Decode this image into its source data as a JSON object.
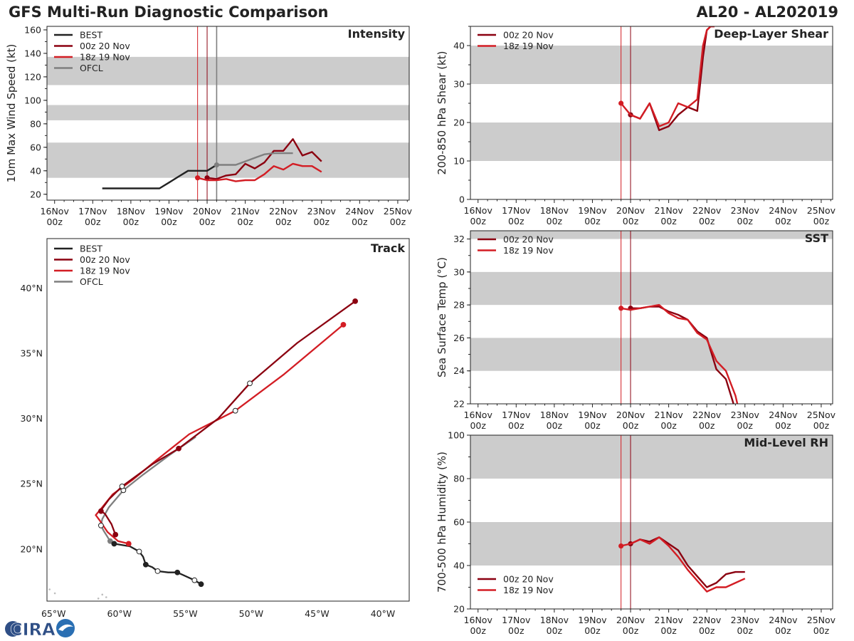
{
  "header": {
    "title_left": "GFS Multi-Run Diagnostic Comparison",
    "title_right": "AL20 - AL202019"
  },
  "logo": {
    "text": "CIRA"
  },
  "colors": {
    "best": "#222222",
    "run_00z": "#8b0010",
    "run_18z": "#d31d24",
    "ofcl": "#7f7f7f",
    "band": "#cccccc",
    "axis": "#222222"
  },
  "chart_data": [
    {
      "id": "intensity",
      "type": "line",
      "title": "Intensity",
      "ylabel": "10m Max Wind Speed (kt)",
      "xlim": [
        -0.2,
        9.3
      ],
      "ylim": [
        15,
        163
      ],
      "yticks": [
        20,
        40,
        60,
        80,
        100,
        120,
        140,
        160
      ],
      "xticks": [
        0,
        1,
        2,
        3,
        4,
        5,
        6,
        7,
        8,
        9
      ],
      "xtick_labels": [
        [
          "16Nov",
          "00z"
        ],
        [
          "17Nov",
          "00z"
        ],
        [
          "18Nov",
          "00z"
        ],
        [
          "19Nov",
          "00z"
        ],
        [
          "20Nov",
          "00z"
        ],
        [
          "21Nov",
          "00z"
        ],
        [
          "22Nov",
          "00z"
        ],
        [
          "23Nov",
          "00z"
        ],
        [
          "24Nov",
          "00z"
        ],
        [
          "25Nov",
          "00z"
        ]
      ],
      "bands": [
        [
          34,
          64
        ],
        [
          83,
          96
        ],
        [
          113,
          137
        ]
      ],
      "vlines": [
        {
          "x": 3.75,
          "series": "18z 19 Nov"
        },
        {
          "x": 4.0,
          "series": "00z 20 Nov"
        },
        {
          "x": 4.25,
          "series": "OFCL"
        }
      ],
      "legend": [
        {
          "label": "BEST",
          "series": "best"
        },
        {
          "label": "00z 20 Nov",
          "series": "run_00z"
        },
        {
          "label": "18z 19 Nov",
          "series": "run_18z"
        },
        {
          "label": "OFCL",
          "series": "ofcl"
        }
      ],
      "series": [
        {
          "name": "BEST",
          "key": "best",
          "x": [
            1.25,
            1.5,
            1.75,
            2.0,
            2.25,
            2.5,
            2.75,
            3.0,
            3.25,
            3.5,
            3.75,
            4.0,
            4.25
          ],
          "y": [
            25,
            25,
            25,
            25,
            25,
            25,
            25,
            30,
            35,
            40,
            40,
            40,
            45
          ]
        },
        {
          "name": "00z 20 Nov",
          "key": "run_00z",
          "x": [
            4.0,
            4.25,
            4.5,
            4.75,
            5.0,
            5.25,
            5.5,
            5.75,
            6.0,
            6.25,
            6.5,
            6.75,
            7.0
          ],
          "y": [
            34,
            33,
            36,
            37,
            46,
            42,
            47,
            57,
            57,
            67,
            53,
            56,
            48
          ],
          "start_marker": true
        },
        {
          "name": "18z 19 Nov",
          "key": "run_18z",
          "x": [
            3.75,
            4.0,
            4.25,
            4.5,
            4.75,
            5.0,
            5.25,
            5.5,
            5.75,
            6.0,
            6.25,
            6.5,
            6.75,
            7.0
          ],
          "y": [
            34,
            32,
            32,
            33,
            31,
            32,
            32,
            37,
            44,
            41,
            46,
            44,
            44,
            39
          ],
          "start_marker": true
        },
        {
          "name": "OFCL",
          "key": "ofcl",
          "x": [
            4.25,
            4.5,
            4.75,
            5.0,
            5.25,
            5.5,
            5.75,
            6.0,
            6.25
          ],
          "y": [
            45,
            45,
            45,
            48,
            51,
            54,
            55,
            55,
            55
          ],
          "start_marker": true
        }
      ]
    },
    {
      "id": "shear",
      "type": "line",
      "title": "Deep-Layer Shear",
      "ylabel": "200-850 hPa Shear (kt)",
      "xlim": [
        -0.2,
        9.3
      ],
      "ylim": [
        0,
        45
      ],
      "yticks": [
        0,
        10,
        20,
        30,
        40
      ],
      "xticks": [
        0,
        1,
        2,
        3,
        4,
        5,
        6,
        7,
        8,
        9
      ],
      "xtick_labels": [
        [
          "16Nov",
          "00z"
        ],
        [
          "17Nov",
          "00z"
        ],
        [
          "18Nov",
          "00z"
        ],
        [
          "19Nov",
          "00z"
        ],
        [
          "20Nov",
          "00z"
        ],
        [
          "21Nov",
          "00z"
        ],
        [
          "22Nov",
          "00z"
        ],
        [
          "23Nov",
          "00z"
        ],
        [
          "24Nov",
          "00z"
        ],
        [
          "25Nov",
          "00z"
        ]
      ],
      "bands": [
        [
          10,
          20
        ],
        [
          30,
          40
        ]
      ],
      "vlines": [
        {
          "x": 3.75,
          "series": "18z 19 Nov"
        },
        {
          "x": 4.0,
          "series": "00z 20 Nov"
        }
      ],
      "legend": [
        {
          "label": "00z 20 Nov",
          "series": "run_00z"
        },
        {
          "label": "18z 19 Nov",
          "series": "run_18z"
        }
      ],
      "series": [
        {
          "name": "00z 20 Nov",
          "key": "run_00z",
          "x": [
            4.0,
            4.25,
            4.5,
            4.75,
            5.0,
            5.25,
            5.5,
            5.75,
            5.9,
            6.0,
            6.1,
            6.2
          ],
          "y": [
            22,
            21,
            25,
            18,
            19,
            22,
            24,
            23,
            37,
            44,
            45,
            45
          ],
          "start_marker": true
        },
        {
          "name": "18z 19 Nov",
          "key": "run_18z",
          "x": [
            3.75,
            4.0,
            4.25,
            4.5,
            4.75,
            5.0,
            5.25,
            5.5,
            5.75,
            5.9,
            6.0,
            6.1,
            6.2
          ],
          "y": [
            25,
            22,
            21,
            25,
            19,
            20,
            25,
            24,
            26,
            40,
            44,
            45,
            45
          ],
          "start_marker": true
        }
      ]
    },
    {
      "id": "sst",
      "type": "line",
      "title": "SST",
      "ylabel": "Sea Surface Temp (°C)",
      "xlim": [
        -0.2,
        9.3
      ],
      "ylim": [
        22,
        32.5
      ],
      "yticks": [
        22,
        24,
        26,
        28,
        30,
        32
      ],
      "xticks": [
        0,
        1,
        2,
        3,
        4,
        5,
        6,
        7,
        8,
        9
      ],
      "xtick_labels": [
        [
          "16Nov",
          "00z"
        ],
        [
          "17Nov",
          "00z"
        ],
        [
          "18Nov",
          "00z"
        ],
        [
          "19Nov",
          "00z"
        ],
        [
          "20Nov",
          "00z"
        ],
        [
          "21Nov",
          "00z"
        ],
        [
          "22Nov",
          "00z"
        ],
        [
          "23Nov",
          "00z"
        ],
        [
          "24Nov",
          "00z"
        ],
        [
          "25Nov",
          "00z"
        ]
      ],
      "bands": [
        [
          24,
          26
        ],
        [
          28,
          30
        ],
        [
          32,
          32.5
        ]
      ],
      "vlines": [
        {
          "x": 3.75,
          "series": "18z 19 Nov"
        },
        {
          "x": 4.0,
          "series": "00z 20 Nov"
        }
      ],
      "legend": [
        {
          "label": "00z 20 Nov",
          "series": "run_00z"
        },
        {
          "label": "18z 19 Nov",
          "series": "run_18z"
        }
      ],
      "series": [
        {
          "name": "00z 20 Nov",
          "key": "run_00z",
          "x": [
            4.0,
            4.25,
            4.5,
            4.75,
            5.0,
            5.25,
            5.5,
            5.75,
            6.0,
            6.25,
            6.5,
            6.7
          ],
          "y": [
            27.8,
            27.8,
            27.9,
            27.9,
            27.6,
            27.4,
            27.1,
            26.4,
            26.0,
            24.1,
            23.5,
            22.0
          ],
          "start_marker": true
        },
        {
          "name": "18z 19 Nov",
          "key": "run_18z",
          "x": [
            3.75,
            4.0,
            4.25,
            4.5,
            4.75,
            5.0,
            5.25,
            5.5,
            5.75,
            6.0,
            6.25,
            6.5,
            6.75,
            6.8
          ],
          "y": [
            27.8,
            27.7,
            27.8,
            27.9,
            28.0,
            27.5,
            27.2,
            27.1,
            26.3,
            25.9,
            24.6,
            24.0,
            22.5,
            22.0
          ],
          "start_marker": true
        }
      ]
    },
    {
      "id": "rh",
      "type": "line",
      "title": "Mid-Level RH",
      "ylabel": "700-500 hPa Humidity (%)",
      "xlim": [
        -0.2,
        9.3
      ],
      "ylim": [
        20,
        100
      ],
      "yticks": [
        20,
        40,
        60,
        80,
        100
      ],
      "xticks": [
        0,
        1,
        2,
        3,
        4,
        5,
        6,
        7,
        8,
        9
      ],
      "xtick_labels": [
        [
          "16Nov",
          "00z"
        ],
        [
          "17Nov",
          "00z"
        ],
        [
          "18Nov",
          "00z"
        ],
        [
          "19Nov",
          "00z"
        ],
        [
          "20Nov",
          "00z"
        ],
        [
          "21Nov",
          "00z"
        ],
        [
          "22Nov",
          "00z"
        ],
        [
          "23Nov",
          "00z"
        ],
        [
          "24Nov",
          "00z"
        ],
        [
          "25Nov",
          "00z"
        ]
      ],
      "bands": [
        [
          40,
          60
        ],
        [
          80,
          100
        ]
      ],
      "vlines": [
        {
          "x": 3.75,
          "series": "18z 19 Nov"
        },
        {
          "x": 4.0,
          "series": "00z 20 Nov"
        }
      ],
      "legend": [
        {
          "label": "00z 20 Nov",
          "series": "run_00z"
        },
        {
          "label": "18z 19 Nov",
          "series": "run_18z"
        }
      ],
      "series": [
        {
          "name": "00z 20 Nov",
          "key": "run_00z",
          "x": [
            4.0,
            4.25,
            4.5,
            4.75,
            5.0,
            5.25,
            5.5,
            5.75,
            6.0,
            6.25,
            6.5,
            6.75,
            7.0
          ],
          "y": [
            50,
            52,
            51,
            53,
            50,
            47,
            40,
            35,
            30,
            32,
            36,
            37,
            37
          ],
          "start_marker": true
        },
        {
          "name": "18z 19 Nov",
          "key": "run_18z",
          "x": [
            3.75,
            4.0,
            4.25,
            4.5,
            4.75,
            5.0,
            5.25,
            5.5,
            5.75,
            6.0,
            6.25,
            6.5,
            6.75,
            7.0
          ],
          "y": [
            49,
            50,
            52,
            50,
            53,
            49,
            44,
            38,
            33,
            28,
            30,
            30,
            32,
            34
          ],
          "start_marker": true
        }
      ]
    },
    {
      "id": "track",
      "type": "line",
      "title": "Track",
      "xlim": [
        -65.5,
        -38.0
      ],
      "ylim": [
        16.0,
        43.8
      ],
      "xticks": [
        -65,
        -60,
        -55,
        -50,
        -45,
        -40
      ],
      "xtick_labels": [
        "65°W",
        "60°W",
        "55°W",
        "50°W",
        "45°W",
        "40°W"
      ],
      "yticks": [
        20,
        25,
        30,
        35,
        40
      ],
      "ytick_labels": [
        "20°N",
        "25°N",
        "30°N",
        "35°N",
        "40°N"
      ],
      "legend": [
        {
          "label": "BEST",
          "series": "best"
        },
        {
          "label": "00z 20 Nov",
          "series": "run_00z"
        },
        {
          "label": "18z 19 Nov",
          "series": "run_18z"
        },
        {
          "label": "OFCL",
          "series": "ofcl"
        }
      ],
      "series": [
        {
          "name": "BEST",
          "key": "best",
          "lon": [
            -53.8,
            -54.3,
            -55.6,
            -56.3,
            -57.1,
            -57.5,
            -58.0,
            -58.2,
            -58.5,
            -59.2,
            -59.8,
            -60.4,
            -60.5
          ],
          "lat": [
            17.3,
            17.6,
            18.2,
            18.2,
            18.3,
            18.6,
            18.8,
            19.4,
            19.8,
            20.2,
            20.3,
            20.4,
            20.4
          ],
          "markers": [
            {
              "i": 0,
              "fill": true
            },
            {
              "i": 1,
              "fill": false
            },
            {
              "i": 2,
              "fill": true
            },
            {
              "i": 4,
              "fill": false
            },
            {
              "i": 6,
              "fill": true
            },
            {
              "i": 8,
              "fill": false
            },
            {
              "i": 11,
              "fill": true
            }
          ]
        },
        {
          "name": "00z 20 Nov",
          "key": "run_00z",
          "lon": [
            -60.3,
            -60.6,
            -61.1,
            -61.4,
            -61.3,
            -60.8,
            -59.8,
            -57.5,
            -55.5,
            -52.5,
            -50.1,
            -46.5,
            -42.1
          ],
          "lat": [
            21.1,
            21.9,
            22.7,
            22.9,
            23.1,
            23.8,
            24.8,
            26.5,
            27.7,
            30.0,
            32.7,
            35.8,
            39.0
          ],
          "markers": [
            {
              "i": 0,
              "fill": true
            },
            {
              "i": 3,
              "fill": true
            },
            {
              "i": 6,
              "fill": false
            },
            {
              "i": 8,
              "fill": true
            },
            {
              "i": 10,
              "fill": false
            },
            {
              "i": 12,
              "fill": true
            }
          ]
        },
        {
          "name": "18z 19 Nov",
          "key": "run_18z",
          "lon": [
            -59.3,
            -60.1,
            -60.9,
            -61.5,
            -61.8,
            -61.3,
            -60.5,
            -59.0,
            -57.2,
            -54.7,
            -51.2,
            -47.5,
            -43.0
          ],
          "lat": [
            20.4,
            20.6,
            21.3,
            22.2,
            22.6,
            23.2,
            24.2,
            25.3,
            26.8,
            28.8,
            30.6,
            33.4,
            37.2
          ],
          "markers": [
            {
              "i": 0,
              "fill": true
            },
            {
              "i": 10,
              "fill": false
            },
            {
              "i": 12,
              "fill": true
            }
          ]
        },
        {
          "name": "OFCL",
          "key": "ofcl",
          "lon": [
            -60.7,
            -61.2,
            -61.4,
            -61.3,
            -60.8,
            -59.7,
            -58.2,
            -56.2,
            -54.2
          ],
          "lat": [
            20.6,
            21.4,
            21.8,
            22.3,
            23.2,
            24.5,
            25.7,
            27.2,
            28.6
          ],
          "markers": [
            {
              "i": 0,
              "fill": true
            },
            {
              "i": 2,
              "fill": false
            },
            {
              "i": 5,
              "fill": false
            }
          ]
        }
      ]
    }
  ]
}
